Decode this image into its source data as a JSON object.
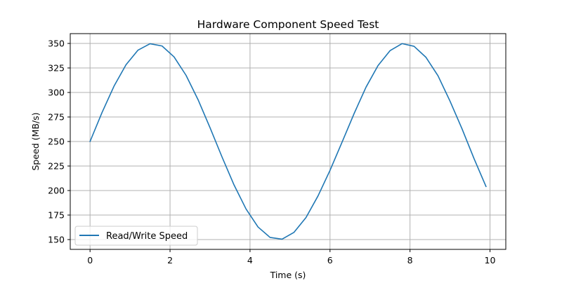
{
  "chart_data": {
    "type": "line",
    "title": "Hardware Component Speed Test",
    "xlabel": "Time (s)",
    "ylabel": "Speed (MB/s)",
    "xlim": [
      -0.495,
      10.395
    ],
    "ylim": [
      140,
      360
    ],
    "xticks": [
      0,
      2,
      4,
      6,
      8,
      10
    ],
    "yticks": [
      150,
      175,
      200,
      225,
      250,
      275,
      300,
      325,
      350
    ],
    "grid": true,
    "legend_position": "lower-left",
    "series": [
      {
        "name": "Read/Write Speed",
        "color": "#1f77b4",
        "x": [
          0,
          0.3,
          0.6,
          0.9,
          1.2,
          1.5,
          1.8,
          2.1,
          2.4,
          2.7,
          3.0,
          3.3,
          3.6,
          3.9,
          4.2,
          4.5,
          4.8,
          5.1,
          5.4,
          5.7,
          6.0,
          6.3,
          6.6,
          6.9,
          7.2,
          7.5,
          7.8,
          8.1,
          8.4,
          8.7,
          9.0,
          9.3,
          9.6,
          9.9
        ],
        "y": [
          250.0,
          279.6,
          306.5,
          328.3,
          343.2,
          349.7,
          347.4,
          336.3,
          317.5,
          292.7,
          264.1,
          234.2,
          205.7,
          181.2,
          162.8,
          152.2,
          150.4,
          157.4,
          172.5,
          194.5,
          220.6,
          249.2,
          278.3,
          305.4,
          327.4,
          342.6,
          349.8,
          347.1,
          335.8,
          317.0,
          291.2,
          263.0,
          232.6,
          204.1
        ]
      }
    ]
  }
}
